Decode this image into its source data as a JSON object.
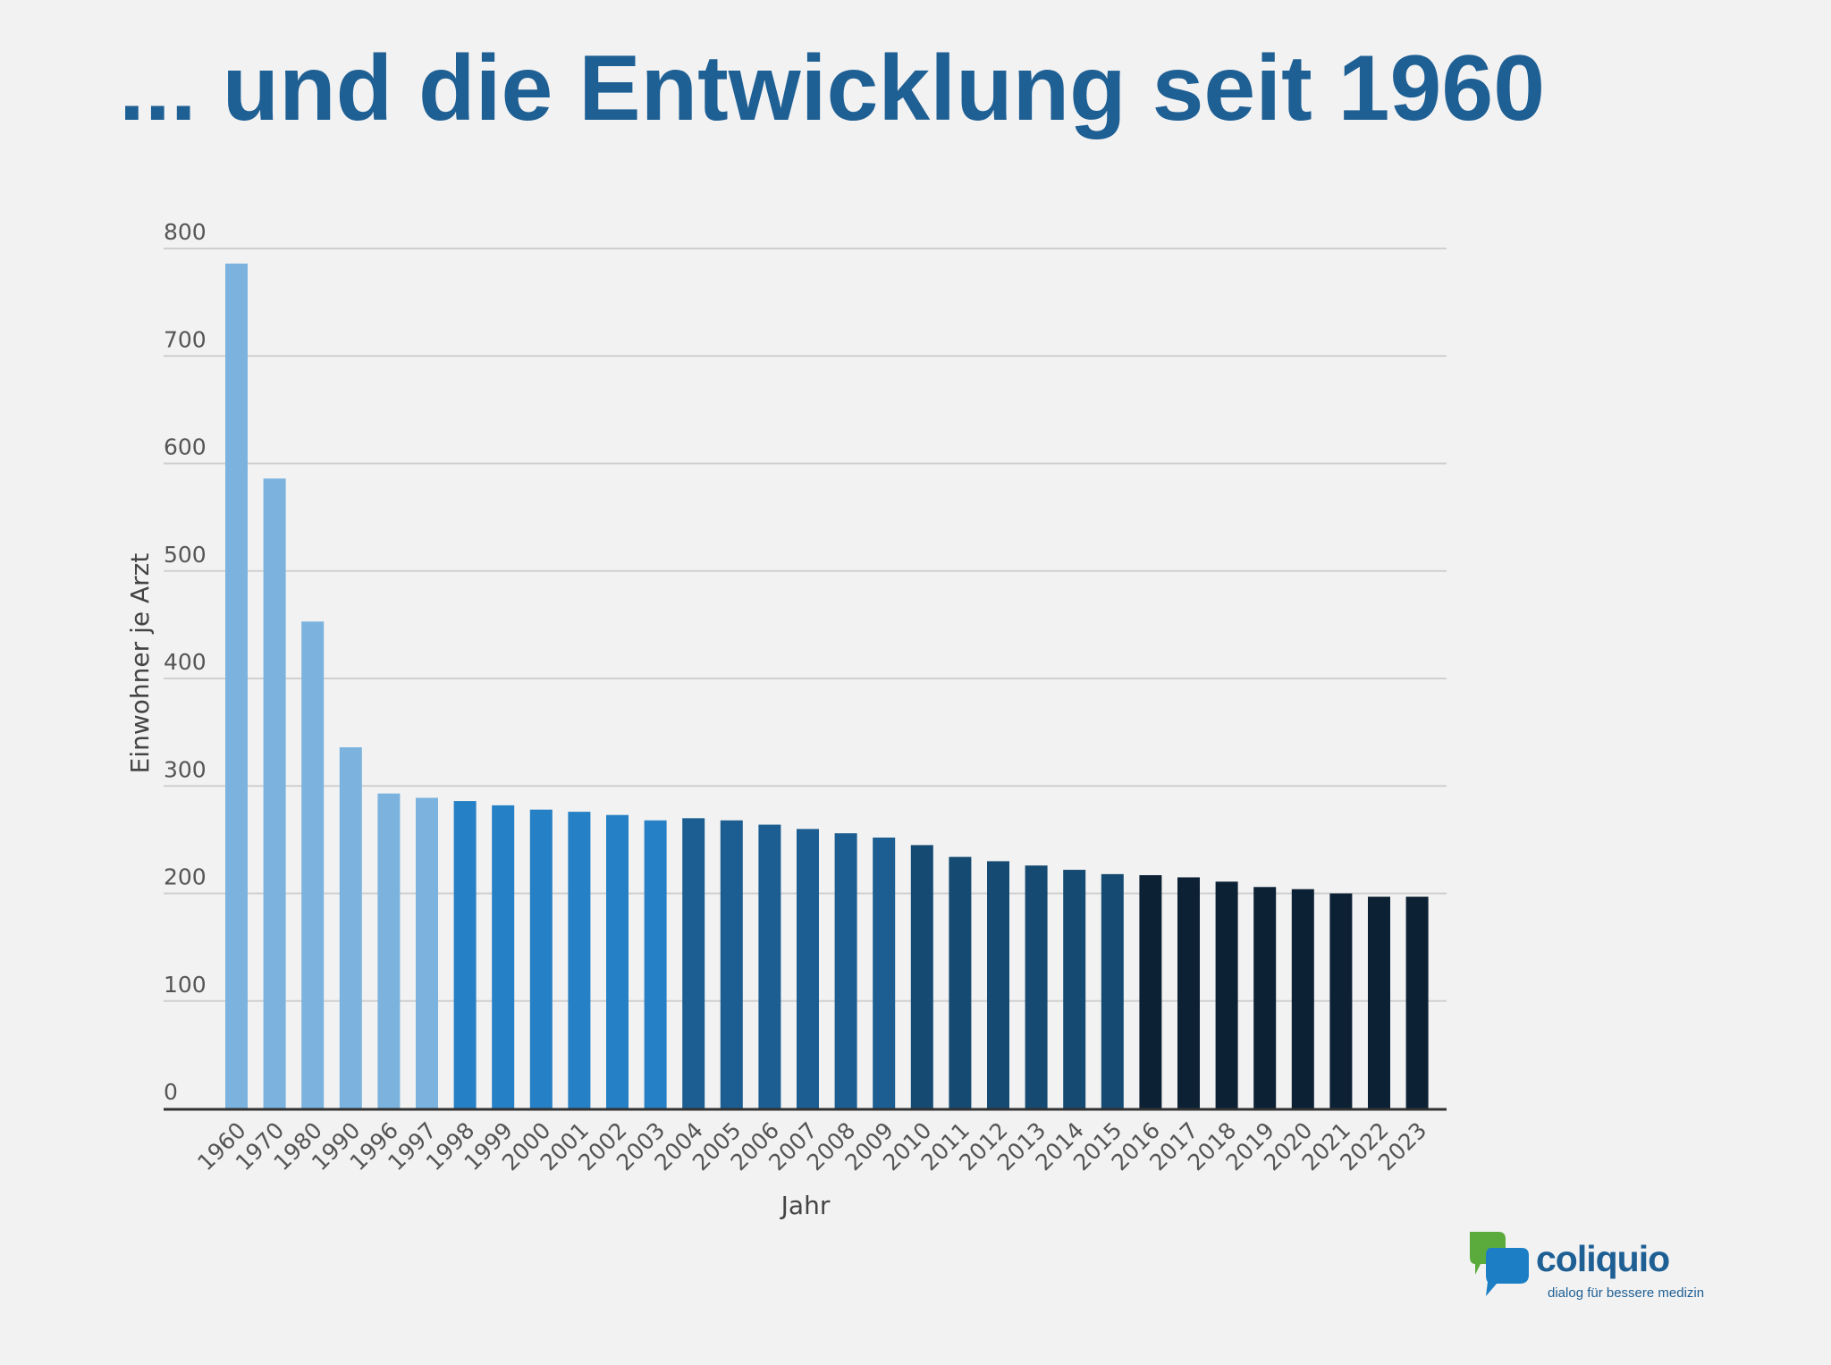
{
  "slide": {
    "title": "... und die Entwicklung seit 1960"
  },
  "chart_data": {
    "type": "bar",
    "xlabel": "Jahr",
    "ylabel": "Einwohner je Arzt",
    "ylim": [
      0,
      800
    ],
    "yticks": [
      0,
      100,
      200,
      300,
      400,
      500,
      600,
      700,
      800
    ],
    "grid": true,
    "categories": [
      "1960",
      "1970",
      "1980",
      "1990",
      "1996",
      "1997",
      "1998",
      "1999",
      "2000",
      "2001",
      "2002",
      "2003",
      "2004",
      "2005",
      "2006",
      "2007",
      "2008",
      "2009",
      "2010",
      "2011",
      "2012",
      "2013",
      "2014",
      "2015",
      "2016",
      "2017",
      "2018",
      "2019",
      "2020",
      "2021",
      "2022",
      "2023"
    ],
    "values": [
      786,
      586,
      453,
      336,
      293,
      289,
      286,
      282,
      278,
      276,
      273,
      268,
      270,
      268,
      264,
      260,
      256,
      252,
      245,
      234,
      230,
      226,
      222,
      218,
      217,
      215,
      211,
      206,
      204,
      200,
      197,
      197
    ],
    "bar_colors": [
      "#7cb3de",
      "#7cb3de",
      "#7cb3de",
      "#7cb3de",
      "#7cb3de",
      "#7cb3de",
      "#2680c5",
      "#2680c5",
      "#2680c5",
      "#2680c5",
      "#2680c5",
      "#2680c5",
      "#1c5e91",
      "#1c5e91",
      "#1c5e91",
      "#1c5e91",
      "#1c5e91",
      "#1c5e91",
      "#154a72",
      "#154a72",
      "#154a72",
      "#154a72",
      "#154a72",
      "#154a72",
      "#0d2135",
      "#0d2135",
      "#0d2135",
      "#0d2135",
      "#0d2135",
      "#0d2135",
      "#0d2135",
      "#0d2135"
    ],
    "colors": {
      "grid": "#d0d0d0",
      "axis": "#333333"
    }
  },
  "logo": {
    "name": "coliquio",
    "tagline": "dialog für bessere medizin",
    "colors": {
      "green": "#5aab3c",
      "blue": "#1c7fc6",
      "text": "#1e5f94"
    }
  }
}
